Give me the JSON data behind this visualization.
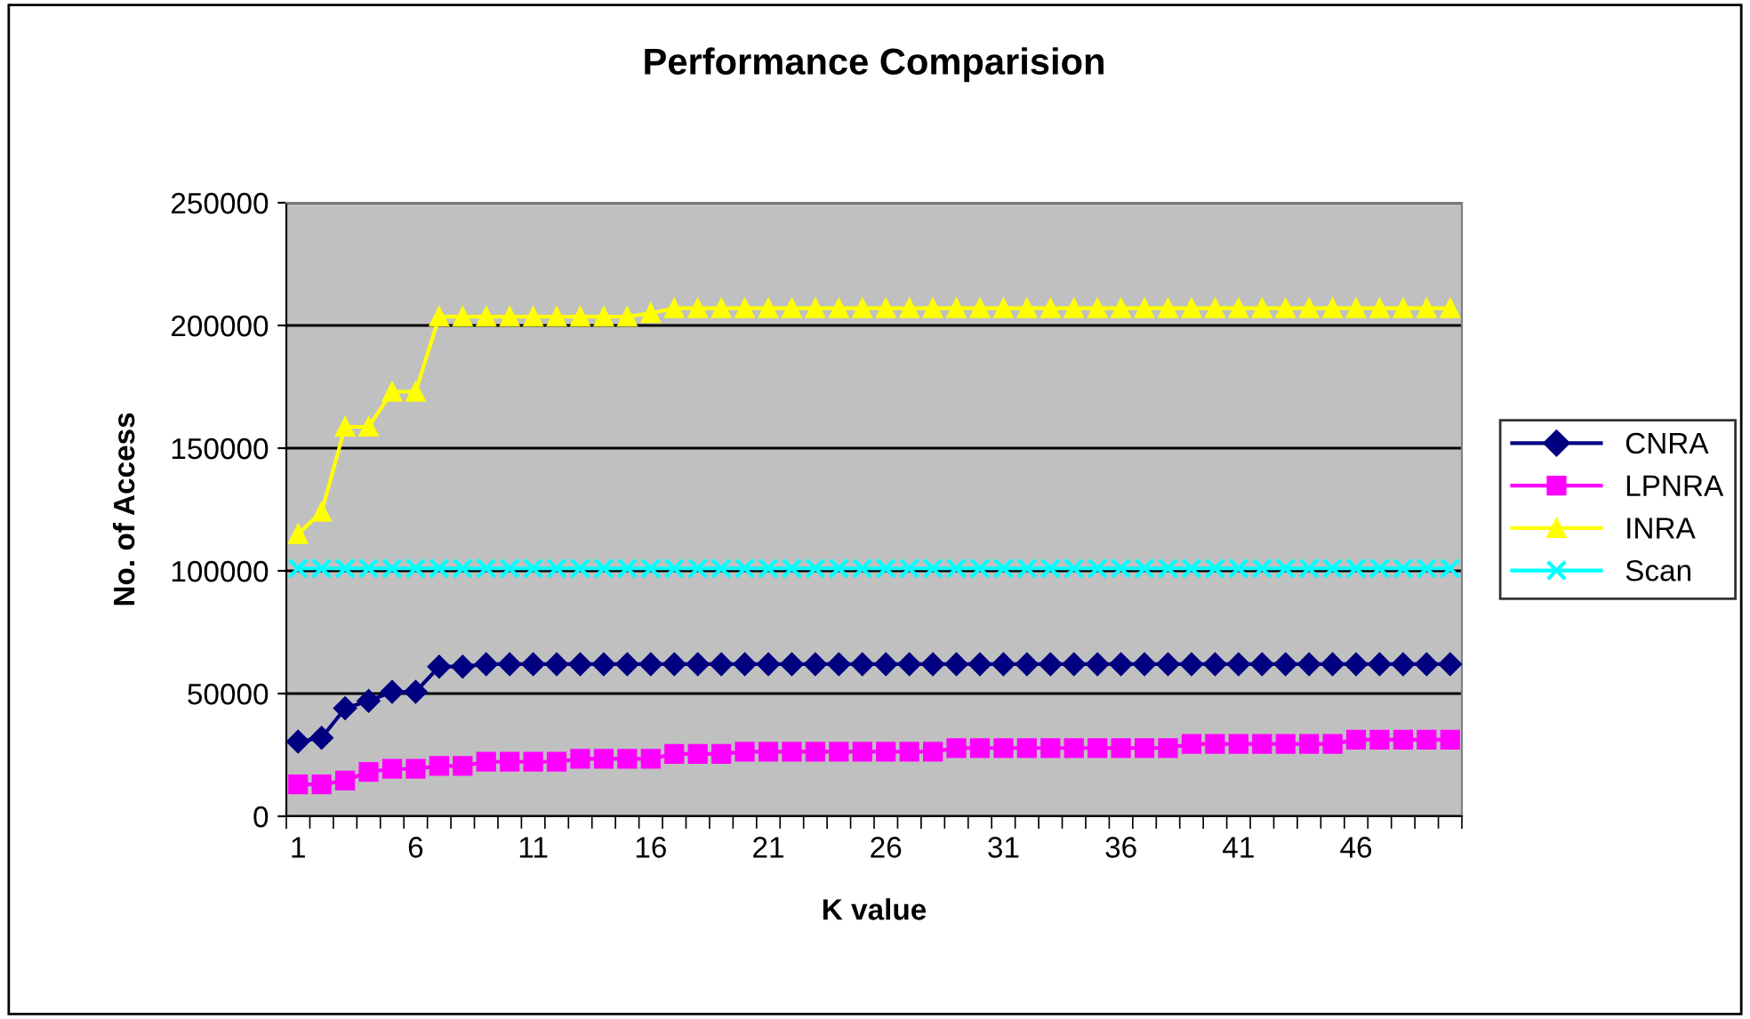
{
  "chart_data": {
    "type": "line",
    "title": "Performance Comparision",
    "xlabel": "K value",
    "ylabel": "No. of Access",
    "categories": [
      "1",
      null,
      null,
      null,
      null,
      "6",
      null,
      null,
      null,
      null,
      "11",
      null,
      null,
      null,
      null,
      "16",
      null,
      null,
      null,
      null,
      "21",
      null,
      null,
      null,
      null,
      "26",
      null,
      null,
      null,
      null,
      "31",
      null,
      null,
      null,
      null,
      "36",
      null,
      null,
      null,
      null,
      "41",
      null,
      null,
      null,
      null,
      "46",
      null,
      null,
      null,
      null
    ],
    "ylim": [
      0,
      250000
    ],
    "yticks": [
      0,
      50000,
      100000,
      150000,
      200000,
      250000
    ],
    "grid": "y",
    "legend": "right",
    "series": [
      {
        "name": "CNRA",
        "color": "#000080",
        "marker": "diamond",
        "values": [
          30400,
          32000,
          44000,
          47000,
          50700,
          50700,
          61000,
          61000,
          62000,
          62000,
          62000,
          62000,
          62000,
          62000,
          62000,
          62000,
          62000,
          62000,
          62000,
          62000,
          62000,
          62000,
          62000,
          62000,
          62000,
          62000,
          62000,
          62000,
          62000,
          62000,
          62000,
          62000,
          62000,
          62000,
          62000,
          62000,
          62000,
          62000,
          62000,
          62000,
          62000,
          62000,
          62000,
          62000,
          62000,
          62000,
          62000,
          62000,
          62000,
          62000
        ]
      },
      {
        "name": "LPNRA",
        "color": "#ff00ff",
        "marker": "square",
        "values": [
          13000,
          13000,
          14500,
          18100,
          19300,
          19300,
          20500,
          20500,
          22200,
          22200,
          22200,
          22200,
          23400,
          23400,
          23400,
          23400,
          25400,
          25400,
          25400,
          26300,
          26300,
          26300,
          26300,
          26300,
          26300,
          26300,
          26300,
          26300,
          27800,
          27800,
          27800,
          27800,
          27800,
          27800,
          27800,
          27800,
          27800,
          27800,
          29500,
          29500,
          29500,
          29500,
          29500,
          29500,
          29500,
          31200,
          31200,
          31200,
          31200,
          31200
        ]
      },
      {
        "name": "INRA",
        "color": "#ffff00",
        "marker": "triangle",
        "values": [
          115000,
          124000,
          158700,
          158700,
          173000,
          173000,
          203600,
          203600,
          203600,
          203600,
          203600,
          203600,
          203600,
          203600,
          203600,
          205000,
          207000,
          207000,
          207000,
          207000,
          207000,
          207000,
          207000,
          207000,
          207000,
          207000,
          207000,
          207000,
          207000,
          207000,
          207000,
          207000,
          207000,
          207000,
          207000,
          207000,
          207000,
          207000,
          207000,
          207000,
          207000,
          207000,
          207000,
          207000,
          207000,
          207000,
          207000,
          207000,
          207000,
          207000
        ]
      },
      {
        "name": "Scan",
        "color": "#00ffff",
        "marker": "cross",
        "values": [
          101000,
          101000,
          101000,
          101000,
          101000,
          101000,
          101000,
          101000,
          101000,
          101000,
          101000,
          101000,
          101000,
          101000,
          101000,
          101000,
          101000,
          101000,
          101000,
          101000,
          101000,
          101000,
          101000,
          101000,
          101000,
          101000,
          101000,
          101000,
          101000,
          101000,
          101000,
          101000,
          101000,
          101000,
          101000,
          101000,
          101000,
          101000,
          101000,
          101000,
          101000,
          101000,
          101000,
          101000,
          101000,
          101000,
          101000,
          101000,
          101000,
          101000
        ]
      }
    ]
  }
}
